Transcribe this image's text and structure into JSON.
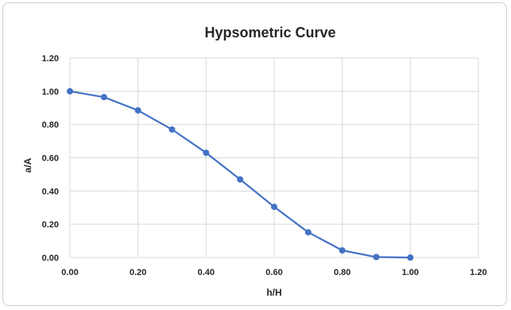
{
  "chart_data": {
    "type": "line",
    "title": "Hypsometric Curve",
    "xlabel": "h/H",
    "ylabel": "a/A",
    "xlim": [
      0,
      1.2
    ],
    "ylim": [
      0,
      1.2
    ],
    "x_ticks": [
      "0.00",
      "0.20",
      "0.40",
      "0.60",
      "0.80",
      "1.00",
      "1.20"
    ],
    "y_ticks": [
      "0.00",
      "0.20",
      "0.40",
      "0.60",
      "0.80",
      "1.00",
      "1.20"
    ],
    "grid": true,
    "legend": "none",
    "series": [
      {
        "color": "#4472c4",
        "x": [
          0.0,
          0.1,
          0.2,
          0.3,
          0.4,
          0.5,
          0.6,
          0.7,
          0.8,
          0.9,
          1.0
        ],
        "y": [
          1.0,
          0.965,
          0.885,
          0.77,
          0.63,
          0.47,
          0.305,
          0.152,
          0.043,
          0.003,
          0.0
        ]
      }
    ]
  }
}
